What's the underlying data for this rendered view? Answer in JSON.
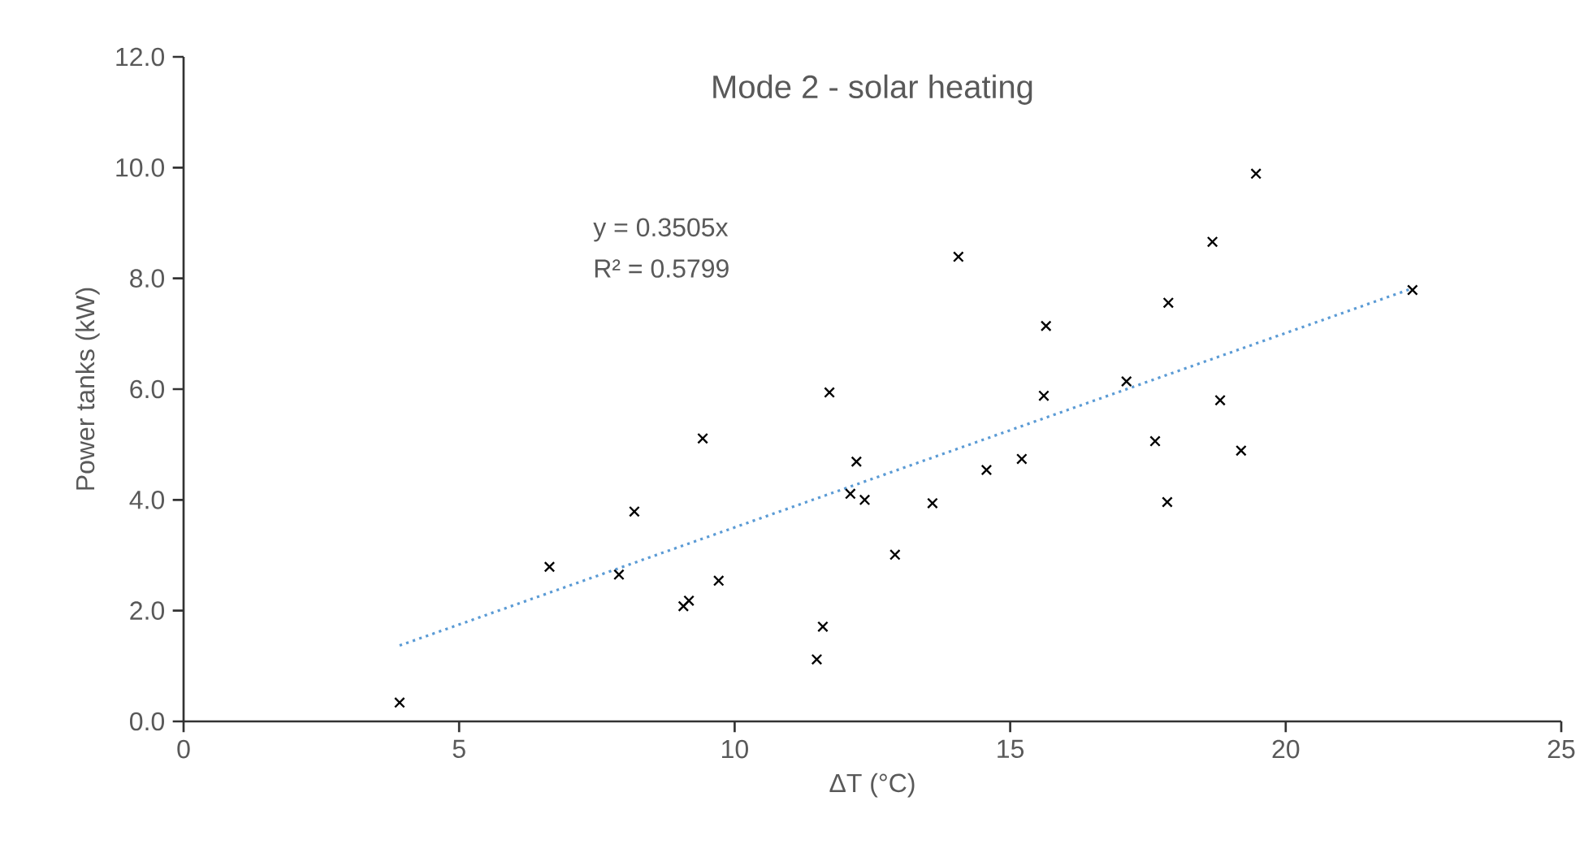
{
  "chart_data": {
    "type": "scatter",
    "title": "Mode 2 - solar heating",
    "xlabel": "ΔT (°C)",
    "ylabel": "Power tanks (kW)",
    "annotations": [
      "y = 0.3505x",
      "R² = 0.5799"
    ],
    "xlim": [
      0,
      25
    ],
    "xticks": [
      0,
      5,
      10,
      15,
      20,
      25
    ],
    "ylim": [
      0,
      12
    ],
    "yticks": [
      {
        "value": 0,
        "label": "0.0"
      },
      {
        "value": 2,
        "label": "2.0"
      },
      {
        "value": 4,
        "label": "4.0"
      },
      {
        "value": 6,
        "label": "6.0"
      },
      {
        "value": 8,
        "label": "8.0"
      },
      {
        "value": 10,
        "label": "10.0"
      },
      {
        "value": 12,
        "label": "12.0"
      }
    ],
    "grid": false,
    "series": [
      {
        "color": "#000000",
        "marker": "cross",
        "x": [
          3.92,
          6.64,
          7.9,
          8.18,
          9.07,
          9.17,
          9.42,
          9.71,
          11.49,
          11.6,
          11.72,
          12.21,
          12.1,
          12.36,
          12.91,
          13.59,
          14.06,
          14.57,
          15.21,
          15.61,
          15.65,
          17.11,
          17.63,
          17.85,
          17.87,
          18.67,
          18.81,
          19.19,
          19.46,
          22.3
        ],
        "values": [
          0.34,
          2.79,
          2.65,
          3.79,
          2.08,
          2.18,
          5.11,
          2.54,
          1.12,
          1.71,
          5.94,
          4.69,
          4.11,
          4.0,
          3.01,
          3.94,
          8.39,
          4.54,
          4.74,
          5.88,
          7.14,
          6.14,
          5.06,
          3.96,
          7.56,
          8.66,
          5.8,
          4.89,
          9.89,
          7.79
        ]
      },
      {
        "type": "line",
        "color": "#5b9bd5",
        "marker": "none",
        "line_style": "dotted",
        "x": [
          3.92,
          22.3
        ],
        "values": [
          1.37,
          7.82
        ]
      }
    ]
  }
}
